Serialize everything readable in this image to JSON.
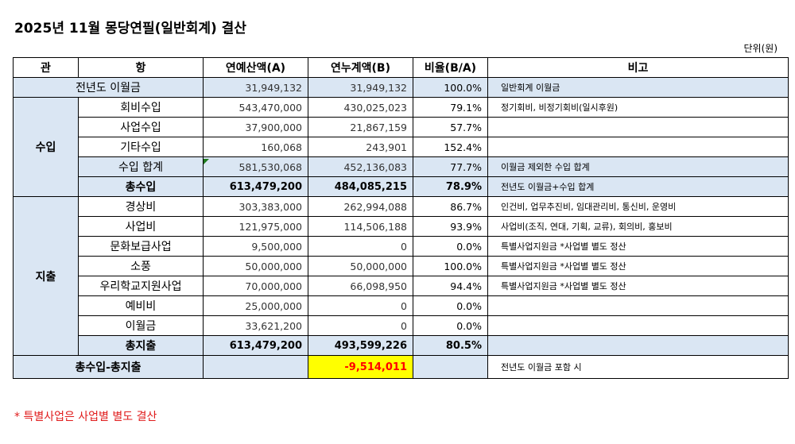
{
  "title": "2025년 11월 몽당연필(일반회계) 결산",
  "unit": "단위(원)",
  "headers": {
    "gwan": "관",
    "hang": "항",
    "budget": "연예산액(A)",
    "actual": "연누계액(B)",
    "ratio": "비율(B/A)",
    "note": "비고"
  },
  "carryover": {
    "label": "전년도 이월금",
    "budget": "31,949,132",
    "actual": "31,949,132",
    "ratio": "100.0%",
    "note": "일반회계 이월금"
  },
  "income": {
    "group": "수입",
    "rows": [
      {
        "label": "회비수입",
        "budget": "543,470,000",
        "actual": "430,025,023",
        "ratio": "79.1%",
        "note": "정기회비, 비정기회비(일시후원)"
      },
      {
        "label": "사업수입",
        "budget": "37,900,000",
        "actual": "21,867,159",
        "ratio": "57.7%",
        "note": ""
      },
      {
        "label": "기타수입",
        "budget": "160,068",
        "actual": "243,901",
        "ratio": "152.4%",
        "note": ""
      }
    ],
    "subtotal": {
      "label": "수입 합계",
      "budget": "581,530,068",
      "actual": "452,136,083",
      "ratio": "77.7%",
      "note": "이월금 제외한 수입 합계"
    },
    "total": {
      "label": "총수입",
      "budget": "613,479,200",
      "actual": "484,085,215",
      "ratio": "78.9%",
      "note": "전년도 이월금+수입 합계"
    }
  },
  "expense": {
    "group": "지출",
    "rows": [
      {
        "label": "경상비",
        "budget": "303,383,000",
        "actual": "262,994,088",
        "ratio": "86.7%",
        "note": "인건비, 업무추진비, 임대관리비, 통신비, 운영비"
      },
      {
        "label": "사업비",
        "budget": "121,975,000",
        "actual": "114,506,188",
        "ratio": "93.9%",
        "note": "사업비(조직, 연대, 기획, 교류), 회의비, 홍보비"
      },
      {
        "label": "문화보급사업",
        "budget": "9,500,000",
        "actual": "0",
        "ratio": "0.0%",
        "note": "특별사업지원금 *사업별 별도 정산"
      },
      {
        "label": "소풍",
        "budget": "50,000,000",
        "actual": "50,000,000",
        "ratio": "100.0%",
        "note": "특별사업지원금 *사업별 별도 정산"
      },
      {
        "label": "우리학교지원사업",
        "budget": "70,000,000",
        "actual": "66,098,950",
        "ratio": "94.4%",
        "note": "특별사업지원금 *사업별 별도 정산"
      },
      {
        "label": "예비비",
        "budget": "25,000,000",
        "actual": "0",
        "ratio": "0.0%",
        "note": ""
      },
      {
        "label": "이월금",
        "budget": "33,621,200",
        "actual": "0",
        "ratio": "0.0%",
        "note": ""
      }
    ],
    "total": {
      "label": "총지출",
      "budget": "613,479,200",
      "actual": "493,599,226",
      "ratio": "80.5%",
      "note": ""
    }
  },
  "balance": {
    "label": "총수입-총지출",
    "actual": "-9,514,011",
    "note": "전년도 이월금 포함 시"
  },
  "footnote": "* 특별사업은 사업별 별도 결산"
}
